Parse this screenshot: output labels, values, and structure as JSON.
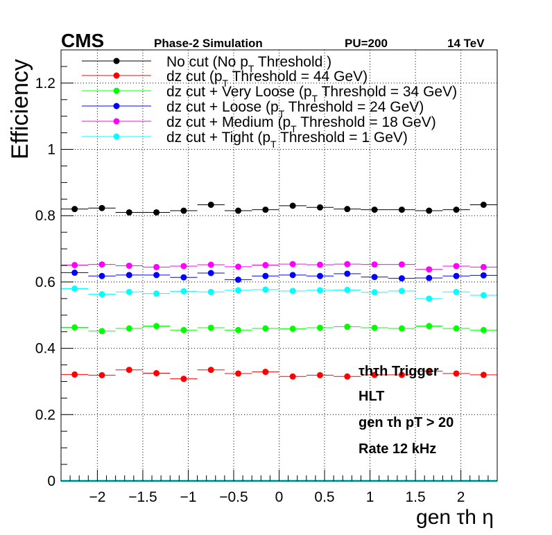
{
  "header": {
    "experiment": "CMS",
    "status": "Phase-2 Simulation",
    "pileup": "PU=200",
    "energy": "14 TeV"
  },
  "annotations": {
    "line1": "τhτh Trigger",
    "line2": "HLT",
    "line3": "gen τh pT > 20",
    "line4": "Rate 12 kHz"
  },
  "chart_data": {
    "type": "scatter",
    "xlabel": "gen τh η",
    "ylabel": "Efficiency",
    "xlim": [
      -2.4,
      2.4
    ],
    "ylim": [
      0,
      1.3
    ],
    "x_ticks": [
      -2,
      -1.5,
      -1,
      -0.5,
      0,
      0.5,
      1,
      1.5,
      2
    ],
    "y_ticks": [
      0,
      0.2,
      0.4,
      0.6,
      0.8,
      1,
      1.2
    ],
    "grid": true,
    "legend_position": "top",
    "bin_edges": [
      -2.4,
      -2.1,
      -1.8,
      -1.5,
      -1.2,
      -0.9,
      -0.6,
      -0.3,
      0,
      0.3,
      0.6,
      0.9,
      1.2,
      1.5,
      1.8,
      2.1,
      2.4
    ],
    "x": [
      -2.25,
      -1.95,
      -1.65,
      -1.35,
      -1.05,
      -0.75,
      -0.45,
      -0.15,
      0.15,
      0.45,
      0.75,
      1.05,
      1.35,
      1.65,
      1.95,
      2.25
    ],
    "series": [
      {
        "name": "No cut (No pT Threshold )",
        "color": "#000000",
        "values": [
          0.82,
          0.823,
          0.81,
          0.81,
          0.815,
          0.833,
          0.815,
          0.818,
          0.83,
          0.825,
          0.82,
          0.818,
          0.818,
          0.815,
          0.818,
          0.833
        ]
      },
      {
        "name": "dz cut (pT Threshold = 44 GeV)",
        "color": "#ff0000",
        "values": [
          0.321,
          0.319,
          0.335,
          0.325,
          0.308,
          0.335,
          0.324,
          0.329,
          0.315,
          0.319,
          0.315,
          0.32,
          0.32,
          0.331,
          0.324,
          0.32
        ]
      },
      {
        "name": "dz cut + Very Loose (pT Threshold = 34 GeV)",
        "color": "#00ff00",
        "values": [
          0.463,
          0.452,
          0.46,
          0.467,
          0.455,
          0.462,
          0.455,
          0.46,
          0.459,
          0.462,
          0.465,
          0.462,
          0.46,
          0.467,
          0.46,
          0.455
        ]
      },
      {
        "name": "dz cut + Loose (pT Threshold = 24 GeV)",
        "color": "#0000ff",
        "values": [
          0.628,
          0.618,
          0.621,
          0.621,
          0.614,
          0.627,
          0.607,
          0.618,
          0.621,
          0.618,
          0.625,
          0.615,
          0.611,
          0.612,
          0.618,
          0.62
        ]
      },
      {
        "name": "dz cut + Medium (pT Threshold = 18 GeV)",
        "color": "#ff00ff",
        "values": [
          0.651,
          0.653,
          0.649,
          0.645,
          0.648,
          0.652,
          0.646,
          0.651,
          0.654,
          0.652,
          0.654,
          0.653,
          0.653,
          0.638,
          0.648,
          0.645
        ]
      },
      {
        "name": "dz cut + Tight (pT Threshold = 1 GeV)",
        "color": "#00ffff",
        "values": [
          0.58,
          0.563,
          0.57,
          0.565,
          0.572,
          0.57,
          0.575,
          0.577,
          0.573,
          0.575,
          0.576,
          0.569,
          0.573,
          0.55,
          0.57,
          0.56
        ]
      }
    ]
  }
}
